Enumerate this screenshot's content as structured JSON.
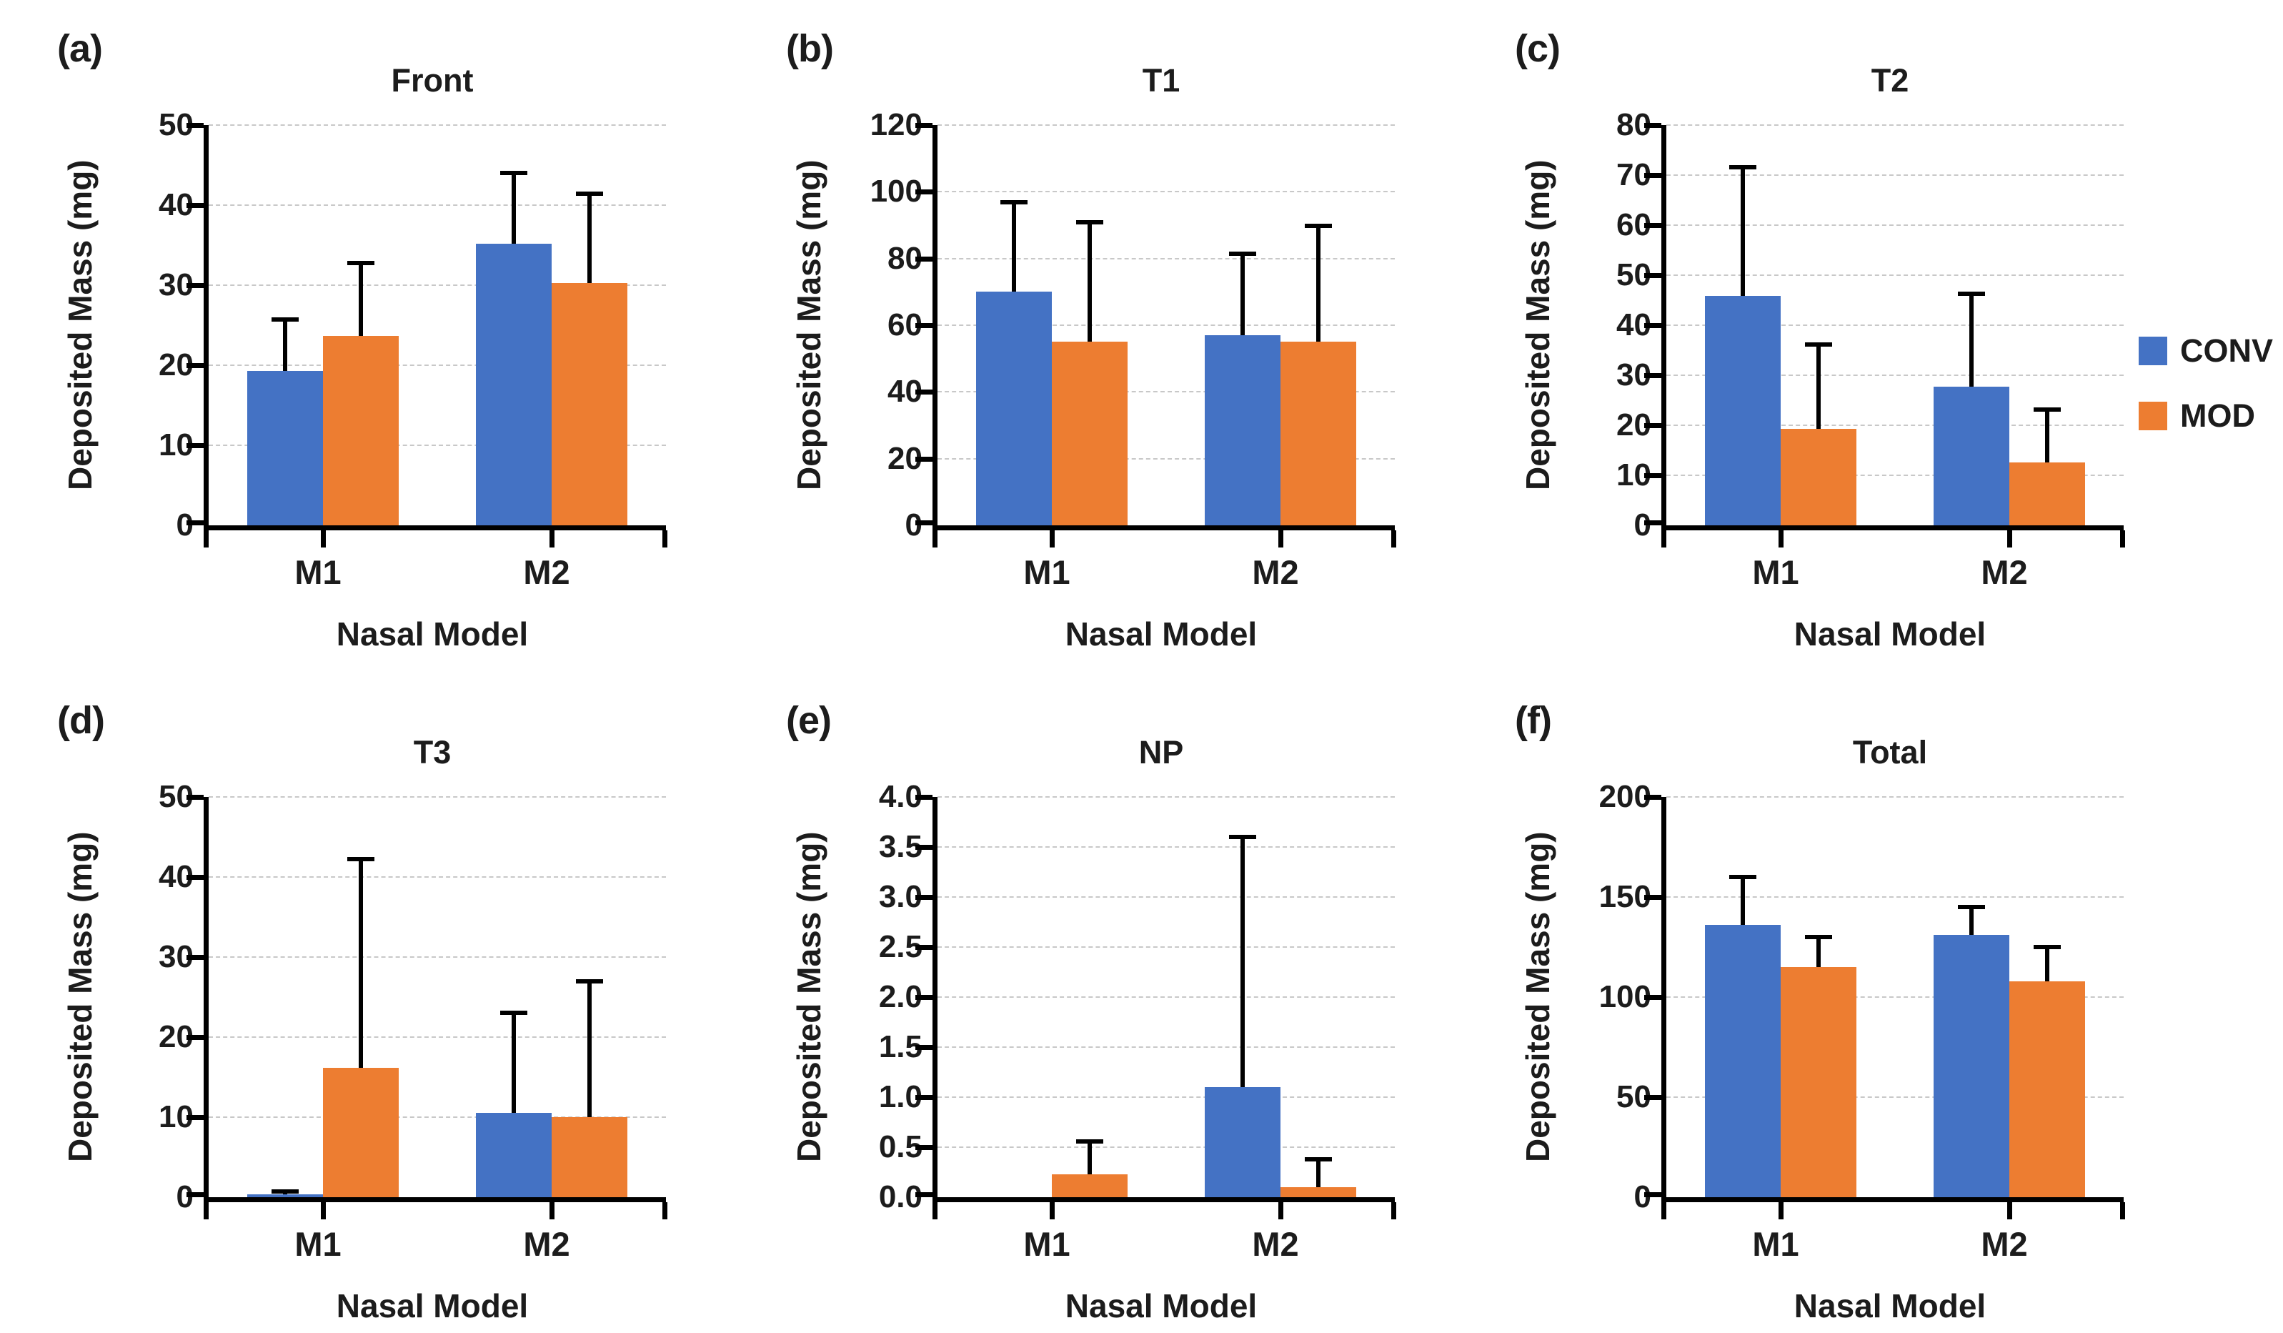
{
  "figure": {
    "background": "#ffffff",
    "axis_color": "#000000",
    "gridline_color": "#c8c8c8",
    "error_bar_color": "#000000"
  },
  "legend": {
    "position": "right-middle",
    "items": [
      {
        "label": "CONV",
        "color": "#4472C4"
      },
      {
        "label": "MOD",
        "color": "#ED7D31"
      }
    ]
  },
  "chart_data": [
    {
      "type": "bar",
      "panel_label": "(a)",
      "title": "Front",
      "xlabel": "Nasal Model",
      "ylabel": "Deposited Mass (mg)",
      "categories": [
        "M1",
        "M2"
      ],
      "ymax": 50,
      "ytick_labels": [
        "0",
        "10",
        "20",
        "30",
        "40",
        "50"
      ],
      "grid": true,
      "series": [
        {
          "name": "CONV",
          "color": "#4472C4",
          "values": [
            19.3,
            35.2
          ],
          "error_top": [
            26.0,
            44.3
          ]
        },
        {
          "name": "MOD",
          "color": "#ED7D31",
          "values": [
            23.7,
            30.3
          ],
          "error_top": [
            33.0,
            41.7
          ]
        }
      ]
    },
    {
      "type": "bar",
      "panel_label": "(b)",
      "title": "T1",
      "xlabel": "Nasal Model",
      "ylabel": "Deposited Mass (mg)",
      "categories": [
        "M1",
        "M2"
      ],
      "ymax": 120,
      "ytick_labels": [
        "0",
        "20",
        "40",
        "60",
        "80",
        "100",
        "120"
      ],
      "grid": true,
      "series": [
        {
          "name": "CONV",
          "color": "#4472C4",
          "values": [
            70.0,
            57.0
          ],
          "error_top": [
            97.5,
            82.0
          ]
        },
        {
          "name": "MOD",
          "color": "#ED7D31",
          "values": [
            55.0,
            55.0
          ],
          "error_top": [
            91.5,
            90.5
          ]
        }
      ]
    },
    {
      "type": "bar",
      "panel_label": "(c)",
      "title": "T2",
      "xlabel": "Nasal Model",
      "ylabel": "Deposited Mass (mg)",
      "categories": [
        "M1",
        "M2"
      ],
      "ymax": 80,
      "ytick_labels": [
        "0",
        "10",
        "20",
        "30",
        "40",
        "50",
        "60",
        "70",
        "80"
      ],
      "grid": true,
      "series": [
        {
          "name": "CONV",
          "color": "#4472C4",
          "values": [
            45.8,
            27.7
          ],
          "error_top": [
            72.0,
            46.7
          ]
        },
        {
          "name": "MOD",
          "color": "#ED7D31",
          "values": [
            19.3,
            12.5
          ],
          "error_top": [
            36.5,
            23.5
          ]
        }
      ]
    },
    {
      "type": "bar",
      "panel_label": "(d)",
      "title": "T3",
      "xlabel": "Nasal Model",
      "ylabel": "Deposited Mass (mg)",
      "categories": [
        "M1",
        "M2"
      ],
      "ymax": 50,
      "ytick_labels": [
        "0",
        "10",
        "20",
        "30",
        "40",
        "50"
      ],
      "grid": true,
      "series": [
        {
          "name": "CONV",
          "color": "#4472C4",
          "values": [
            0.4,
            10.5
          ],
          "error_top": [
            1.0,
            23.3
          ]
        },
        {
          "name": "MOD",
          "color": "#ED7D31",
          "values": [
            16.2,
            10.0
          ],
          "error_top": [
            42.5,
            27.2
          ]
        }
      ]
    },
    {
      "type": "bar",
      "panel_label": "(e)",
      "title": "NP",
      "xlabel": "Nasal Model",
      "ylabel": "Deposited Mass (mg)",
      "categories": [
        "M1",
        "M2"
      ],
      "ymax": 4.0,
      "ytick_labels": [
        "0.0",
        "0.5",
        "1.0",
        "1.5",
        "2.0",
        "2.5",
        "3.0",
        "3.5",
        "4.0"
      ],
      "grid": true,
      "series": [
        {
          "name": "CONV",
          "color": "#4472C4",
          "values": [
            0,
            1.1
          ],
          "error_top": [
            null,
            3.62
          ]
        },
        {
          "name": "MOD",
          "color": "#ED7D31",
          "values": [
            0.23,
            0.1
          ],
          "error_top": [
            0.58,
            0.4
          ]
        }
      ]
    },
    {
      "type": "bar",
      "panel_label": "(f)",
      "title": "Total",
      "xlabel": "Nasal Model",
      "ylabel": "Deposited Mass (mg)",
      "categories": [
        "M1",
        "M2"
      ],
      "ymax": 200,
      "ytick_labels": [
        "0",
        "50",
        "100",
        "150",
        "200"
      ],
      "grid": true,
      "series": [
        {
          "name": "CONV",
          "color": "#4472C4",
          "values": [
            136.0,
            131.0
          ],
          "error_top": [
            161.0,
            146.0
          ]
        },
        {
          "name": "MOD",
          "color": "#ED7D31",
          "values": [
            115.0,
            108.0
          ],
          "error_top": [
            131.0,
            126.0
          ]
        }
      ]
    }
  ]
}
